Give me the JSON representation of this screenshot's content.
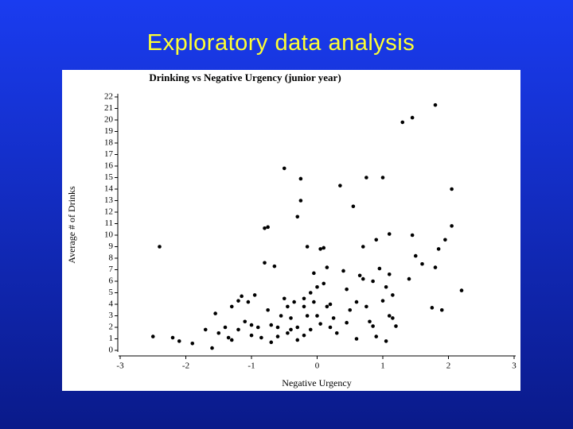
{
  "slide": {
    "title": "Exploratory data analysis"
  },
  "chart_data": {
    "type": "scatter",
    "title": "Drinking vs Negative Urgency (junior year)",
    "x_label": "Negative Urgency",
    "y_label": "Average # of Drinks",
    "color": "#000000",
    "xlim": [
      -3,
      3
    ],
    "xticks": [
      -3,
      -2,
      -1,
      0,
      1,
      2,
      3
    ],
    "ylim": [
      0,
      22
    ],
    "yticks": [
      0,
      1,
      2,
      3,
      4,
      5,
      6,
      7,
      8,
      9,
      10,
      11,
      12,
      13,
      14,
      15,
      16,
      17,
      18,
      19,
      20,
      21,
      22
    ],
    "x": [
      -2.5,
      -2.4,
      -2.2,
      -2.1,
      -1.9,
      -1.7,
      -1.6,
      -1.55,
      -1.5,
      -1.4,
      -1.35,
      -1.3,
      -1.3,
      -1.2,
      -1.2,
      -1.15,
      -1.1,
      -1.05,
      -1,
      -1,
      -0.95,
      -0.9,
      -0.85,
      -0.8,
      -0.8,
      -0.75,
      -0.75,
      -0.7,
      -0.7,
      -0.65,
      -0.6,
      -0.6,
      -0.55,
      -0.5,
      -0.5,
      -0.45,
      -0.45,
      -0.4,
      -0.4,
      -0.35,
      -0.3,
      -0.3,
      -0.25,
      -0.25,
      -0.2,
      -0.2,
      -0.15,
      -0.15,
      -0.1,
      -0.1,
      -0.05,
      -0.05,
      0,
      0,
      0.05,
      0.05,
      0.1,
      0.1,
      0.15,
      0.15,
      0.2,
      0.25,
      0.35,
      0.4,
      0.45,
      0.45,
      0.5,
      0.55,
      0.6,
      0.7,
      0.7,
      0.75,
      0.75,
      0.8,
      0.85,
      0.9,
      0.95,
      1,
      1,
      1.05,
      1.1,
      1.1,
      1.15,
      1.2,
      1.3,
      1.4,
      1.45,
      1.45,
      1.5,
      1.6,
      1.75,
      1.8,
      1.8,
      1.85,
      1.9,
      1.95,
      2.05,
      2.05,
      2.2,
      -0.3,
      -0.2,
      0.2,
      0.3,
      0.6,
      0.9,
      1.1,
      1.15,
      0.65,
      0.85,
      1.05
    ],
    "values": [
      1.2,
      9,
      1.1,
      0.8,
      0.6,
      1.8,
      0.2,
      3.2,
      1.5,
      2,
      1.1,
      0.9,
      3.8,
      4.3,
      1.8,
      4.7,
      2.5,
      4.2,
      1.3,
      2.2,
      4.8,
      2,
      1.1,
      7.6,
      10.6,
      10.7,
      3.5,
      0.7,
      2.2,
      7.3,
      1.2,
      2,
      3,
      15.8,
      4.5,
      1.5,
      3.8,
      1.8,
      2.8,
      4.2,
      11.6,
      2,
      13,
      14.9,
      3.8,
      4.5,
      9,
      3,
      5,
      1.8,
      4.2,
      6.7,
      3,
      5.5,
      8.8,
      2.3,
      8.9,
      5.8,
      3.8,
      7.2,
      4,
      2.8,
      14.3,
      6.9,
      2.4,
      5.3,
      3.5,
      12.5,
      4.2,
      9,
      6.2,
      15,
      3.8,
      2.5,
      2.1,
      9.6,
      7.1,
      15,
      4.3,
      0.8,
      6.6,
      10.1,
      4.8,
      2.1,
      19.8,
      6.2,
      20.2,
      10,
      8.2,
      7.5,
      3.7,
      21.3,
      7.2,
      8.8,
      3.5,
      9.6,
      14,
      10.8,
      5.2,
      0.9,
      1.3,
      2,
      1.5,
      1,
      1.2,
      3,
      2.8,
      6.5,
      6,
      5.5
    ]
  }
}
